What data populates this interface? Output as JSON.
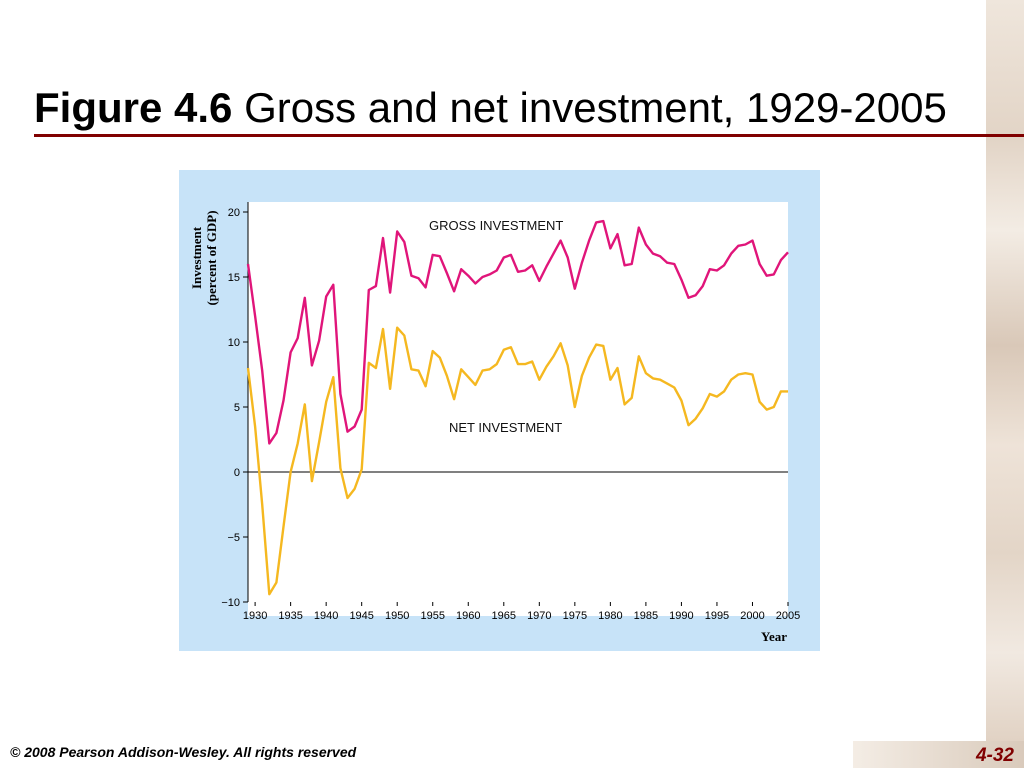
{
  "slide": {
    "title_bold": "Figure 4.6",
    "title_rest": "Gross and net investment, 1929-2005",
    "footer": "© 2008 Pearson Addison-Wesley. All rights reserved",
    "page_number": "4-32"
  },
  "colors": {
    "gross": "#e0157a",
    "net": "#f5b820",
    "panel": "#c7e3f8",
    "rule": "#800000"
  },
  "chart_data": {
    "type": "line",
    "xlabel": "Year",
    "ylabel_line1": "Investment",
    "ylabel_line2": "(percent of GDP)",
    "xlim": [
      1929,
      2005
    ],
    "ylim": [
      -10,
      20
    ],
    "x_ticks": [
      "1930",
      "1935",
      "1940",
      "1945",
      "1950",
      "1955",
      "1960",
      "1965",
      "1970",
      "1975",
      "1980",
      "1985",
      "1990",
      "1995",
      "2000",
      "2005"
    ],
    "y_ticks": [
      "20",
      "15",
      "10",
      "5",
      "0",
      "−5",
      "−10"
    ],
    "grid": false,
    "zero_line": true,
    "x": [
      1929,
      1930,
      1931,
      1932,
      1933,
      1934,
      1935,
      1936,
      1937,
      1938,
      1939,
      1940,
      1941,
      1942,
      1943,
      1944,
      1945,
      1946,
      1947,
      1948,
      1949,
      1950,
      1951,
      1952,
      1953,
      1954,
      1955,
      1956,
      1957,
      1958,
      1959,
      1960,
      1961,
      1962,
      1963,
      1964,
      1965,
      1966,
      1967,
      1968,
      1969,
      1970,
      1971,
      1972,
      1973,
      1974,
      1975,
      1976,
      1977,
      1978,
      1979,
      1980,
      1981,
      1982,
      1983,
      1984,
      1985,
      1986,
      1987,
      1988,
      1989,
      1990,
      1991,
      1992,
      1993,
      1994,
      1995,
      1996,
      1997,
      1998,
      1999,
      2000,
      2001,
      2002,
      2003,
      2004,
      2005
    ],
    "series": [
      {
        "name": "GROSS INVESTMENT",
        "color_key": "gross",
        "values": [
          16.0,
          12.0,
          7.8,
          2.2,
          3.0,
          5.5,
          9.2,
          10.3,
          13.4,
          8.2,
          10.1,
          13.5,
          14.4,
          6.0,
          3.1,
          3.5,
          4.8,
          14.0,
          14.3,
          18.0,
          13.8,
          18.5,
          17.7,
          15.1,
          14.9,
          14.2,
          16.7,
          16.6,
          15.3,
          13.9,
          15.6,
          15.1,
          14.5,
          15.0,
          15.2,
          15.5,
          16.5,
          16.7,
          15.4,
          15.5,
          15.9,
          14.7,
          15.8,
          16.8,
          17.8,
          16.5,
          14.1,
          16.1,
          17.8,
          19.2,
          19.3,
          17.2,
          18.3,
          15.9,
          16.0,
          18.8,
          17.5,
          16.8,
          16.6,
          16.1,
          16.0,
          14.8,
          13.4,
          13.6,
          14.3,
          15.6,
          15.5,
          15.9,
          16.8,
          17.4,
          17.5,
          17.8,
          16.0,
          15.1,
          15.2,
          16.3,
          16.9
        ]
      },
      {
        "name": "NET INVESTMENT",
        "color_key": "net",
        "values": [
          8.0,
          3.5,
          -2.5,
          -9.4,
          -8.5,
          -4.2,
          0.0,
          2.2,
          5.2,
          -0.7,
          2.3,
          5.4,
          7.3,
          0.3,
          -2.0,
          -1.3,
          0.2,
          8.4,
          8.0,
          11.0,
          6.4,
          11.1,
          10.5,
          7.9,
          7.8,
          6.6,
          9.3,
          8.8,
          7.4,
          5.6,
          7.9,
          7.3,
          6.7,
          7.8,
          7.9,
          8.3,
          9.4,
          9.6,
          8.3,
          8.3,
          8.5,
          7.1,
          8.1,
          8.9,
          9.9,
          8.2,
          5.0,
          7.4,
          8.8,
          9.8,
          9.7,
          7.1,
          8.0,
          5.2,
          5.7,
          8.9,
          7.6,
          7.2,
          7.1,
          6.8,
          6.5,
          5.5,
          3.6,
          4.1,
          4.9,
          6.0,
          5.8,
          6.2,
          7.1,
          7.5,
          7.6,
          7.5,
          5.4,
          4.8,
          5.0,
          6.2,
          6.2
        ]
      }
    ]
  }
}
